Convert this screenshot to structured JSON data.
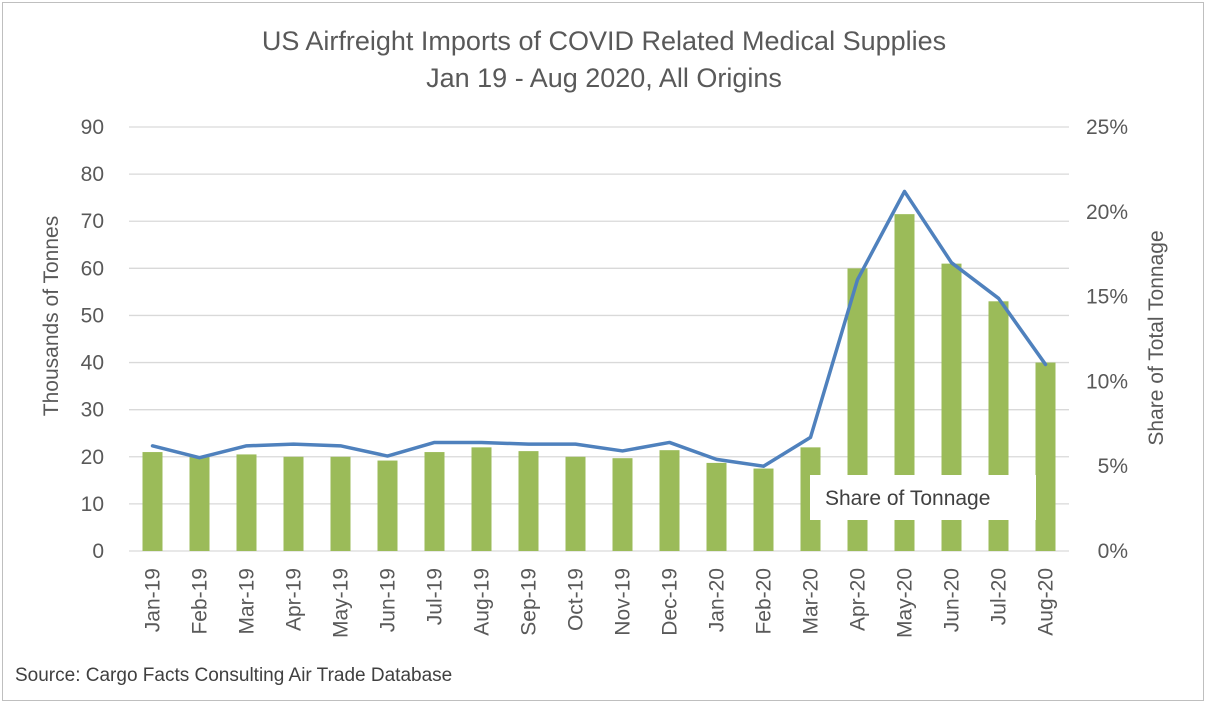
{
  "chart_data": {
    "type": "bar",
    "title": "US Airfreight Imports of COVID Related Medical Supplies",
    "subtitle": "Jan 19 - Aug 2020, All Origins",
    "categories": [
      "Jan-19",
      "Feb-19",
      "Mar-19",
      "Apr-19",
      "May-19",
      "Jun-19",
      "Jul-19",
      "Aug-19",
      "Sep-19",
      "Oct-19",
      "Nov-19",
      "Dec-19",
      "Jan-20",
      "Feb-20",
      "Mar-20",
      "Apr-20",
      "May-20",
      "Jun-20",
      "Jul-20",
      "Aug-20"
    ],
    "ylabel": "Thousands of Tonnes",
    "y2label": "Share of Total Tonnage",
    "ylim": [
      0,
      90
    ],
    "yticks": [
      0,
      10,
      20,
      30,
      40,
      50,
      60,
      70,
      80,
      90
    ],
    "y2lim": [
      0,
      0.25
    ],
    "y2ticks": [
      "0%",
      "5%",
      "10%",
      "15%",
      "20%",
      "25%"
    ],
    "grid": true,
    "series": [
      {
        "type": "bar",
        "axis": "left",
        "color": "#9bbb59",
        "values": [
          21,
          20,
          20.5,
          20,
          20,
          19.2,
          21,
          22,
          21.2,
          20,
          19.7,
          21.4,
          18.7,
          17.5,
          22,
          60,
          71.5,
          61,
          53,
          40
        ]
      },
      {
        "type": "line",
        "axis": "right",
        "name": "Share of Tonnage",
        "color": "#4f81bd",
        "values": [
          0.062,
          0.055,
          0.062,
          0.063,
          0.062,
          0.056,
          0.064,
          0.064,
          0.063,
          0.063,
          0.059,
          0.064,
          0.054,
          0.05,
          0.067,
          0.16,
          0.212,
          0.17,
          0.149,
          0.11
        ]
      }
    ],
    "annotation": "Share of Tonnage",
    "source": "Source: Cargo Facts Consulting Air Trade Database"
  }
}
